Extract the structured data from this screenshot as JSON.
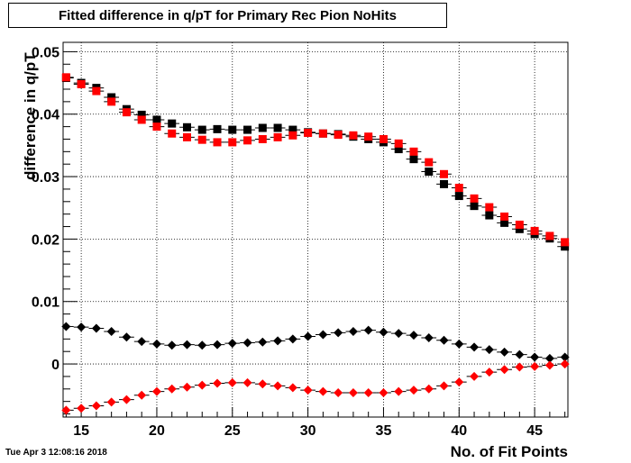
{
  "chart_data": {
    "type": "scatter",
    "title": "Fitted difference in q/pT for Primary Rec Pion NoHits",
    "xlabel": "No. of Fit Points",
    "ylabel": "difference in q/pT",
    "xlim": [
      13.8,
      47.2
    ],
    "ylim": [
      -0.0085,
      0.0515
    ],
    "xticks": [
      15,
      20,
      25,
      30,
      35,
      40,
      45
    ],
    "yticks": [
      0,
      0.01,
      0.02,
      0.03,
      0.04,
      0.05
    ],
    "ytick_labels": [
      "0",
      "0.01",
      "0.02",
      "0.03",
      "0.04",
      "0.05"
    ],
    "grid": true,
    "x": [
      14,
      15,
      16,
      17,
      18,
      19,
      20,
      21,
      22,
      23,
      24,
      25,
      26,
      27,
      28,
      29,
      30,
      31,
      32,
      33,
      34,
      35,
      36,
      37,
      38,
      39,
      40,
      41,
      42,
      43,
      44,
      45,
      46,
      47
    ],
    "series": [
      {
        "color": "#000000",
        "marker": "square",
        "values": [
          0.0458,
          0.045,
          0.0442,
          0.0427,
          0.0408,
          0.0399,
          0.0391,
          0.0385,
          0.0379,
          0.0375,
          0.0376,
          0.0375,
          0.0375,
          0.0378,
          0.0378,
          0.0375,
          0.0371,
          0.0369,
          0.0368,
          0.0364,
          0.036,
          0.0355,
          0.0344,
          0.0328,
          0.0308,
          0.0288,
          0.0269,
          0.0253,
          0.0238,
          0.0226,
          0.0216,
          0.0208,
          0.0201,
          0.0188
        ]
      },
      {
        "color": "#ff0000",
        "marker": "square",
        "values": [
          0.0459,
          0.0448,
          0.0437,
          0.042,
          0.0403,
          0.0391,
          0.038,
          0.0369,
          0.0363,
          0.0359,
          0.0355,
          0.0355,
          0.0358,
          0.036,
          0.0363,
          0.0366,
          0.037,
          0.0369,
          0.0367,
          0.0366,
          0.0364,
          0.036,
          0.0353,
          0.034,
          0.0323,
          0.0304,
          0.0282,
          0.0265,
          0.0251,
          0.0236,
          0.0223,
          0.0213,
          0.0205,
          0.0195
        ]
      },
      {
        "color": "#000000",
        "marker": "diamond",
        "values": [
          0.006,
          0.0059,
          0.0057,
          0.0052,
          0.0043,
          0.0036,
          0.0032,
          0.003,
          0.0031,
          0.003,
          0.0031,
          0.0033,
          0.0034,
          0.0035,
          0.0037,
          0.004,
          0.0044,
          0.0047,
          0.005,
          0.0052,
          0.0054,
          0.0051,
          0.0049,
          0.0046,
          0.0042,
          0.0038,
          0.0032,
          0.0027,
          0.0023,
          0.0019,
          0.0015,
          0.0011,
          0.0009,
          0.0011
        ]
      },
      {
        "color": "#ff0000",
        "marker": "diamond",
        "values": [
          -0.0074,
          -0.0071,
          -0.0067,
          -0.0061,
          -0.0057,
          -0.005,
          -0.0044,
          -0.004,
          -0.0037,
          -0.0034,
          -0.0031,
          -0.003,
          -0.003,
          -0.0032,
          -0.0035,
          -0.0038,
          -0.0042,
          -0.0044,
          -0.0046,
          -0.0046,
          -0.0046,
          -0.0046,
          -0.0044,
          -0.0042,
          -0.004,
          -0.0035,
          -0.0029,
          -0.002,
          -0.0013,
          -0.0009,
          -0.0005,
          -0.0004,
          -0.0002,
          0.0
        ]
      }
    ]
  },
  "timestamp": "Tue Apr  3 12:08:16 2018"
}
